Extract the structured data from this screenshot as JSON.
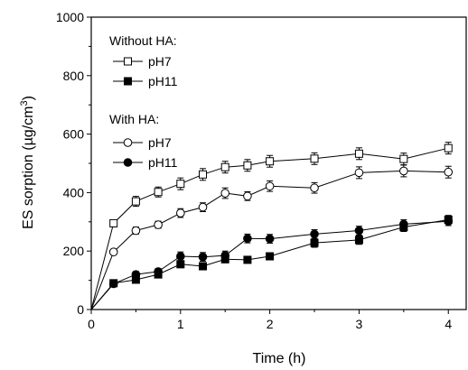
{
  "chart_data": {
    "type": "line",
    "xlabel": "Time (h)",
    "ylabel": "ES sorption (µg/cm³)",
    "ylabel_parts": {
      "main": "ES sorption (µg/cm",
      "sup": "3",
      "close": ")"
    },
    "xlim": [
      0,
      4.2
    ],
    "ylim": [
      0,
      1000
    ],
    "xticks": [
      0,
      1,
      2,
      3,
      4
    ],
    "yticks": [
      0,
      200,
      400,
      600,
      800,
      1000
    ],
    "legend": {
      "position": "top-left",
      "group_titles": [
        "Without HA:",
        "With HA:"
      ]
    },
    "series": [
      {
        "name": "pH7",
        "group": "Without HA:",
        "marker": "open-square",
        "x": [
          0,
          0.25,
          0.5,
          0.75,
          1,
          1.25,
          1.5,
          1.75,
          2,
          2.5,
          3,
          3.5,
          4
        ],
        "y": [
          0,
          295,
          370,
          402,
          430,
          462,
          487,
          493,
          507,
          516,
          533,
          515,
          552
        ],
        "err": [
          0,
          12,
          17,
          17,
          20,
          20,
          20,
          20,
          20,
          20,
          20,
          20,
          20
        ]
      },
      {
        "name": "pH11",
        "group": "Without HA:",
        "marker": "filled-square",
        "x": [
          0,
          0.25,
          0.5,
          0.75,
          1,
          1.25,
          1.5,
          1.75,
          2,
          2.5,
          3,
          3.5,
          4
        ],
        "y": [
          0,
          90,
          102,
          120,
          155,
          148,
          172,
          170,
          182,
          228,
          238,
          282,
          307
        ],
        "err": [
          0,
          8,
          10,
          10,
          12,
          10,
          12,
          10,
          12,
          15,
          15,
          15,
          15
        ]
      },
      {
        "name": "pH7",
        "group": "With HA:",
        "marker": "open-circle",
        "x": [
          0,
          0.25,
          0.5,
          0.75,
          1,
          1.25,
          1.5,
          1.75,
          2,
          2.5,
          3,
          3.5,
          4
        ],
        "y": [
          0,
          197,
          270,
          290,
          330,
          350,
          398,
          388,
          422,
          416,
          468,
          474,
          470
        ],
        "err": [
          0,
          8,
          12,
          12,
          15,
          15,
          18,
          15,
          18,
          18,
          20,
          20,
          20
        ]
      },
      {
        "name": "pH11",
        "group": "With HA:",
        "marker": "filled-circle",
        "x": [
          0,
          0.25,
          0.5,
          0.75,
          1,
          1.25,
          1.5,
          1.75,
          2,
          2.5,
          3,
          3.5,
          4
        ],
        "y": [
          0,
          88,
          120,
          130,
          182,
          180,
          185,
          243,
          242,
          258,
          270,
          292,
          302
        ],
        "err": [
          0,
          8,
          10,
          10,
          15,
          15,
          15,
          15,
          15,
          15,
          15,
          15,
          15
        ]
      }
    ]
  }
}
